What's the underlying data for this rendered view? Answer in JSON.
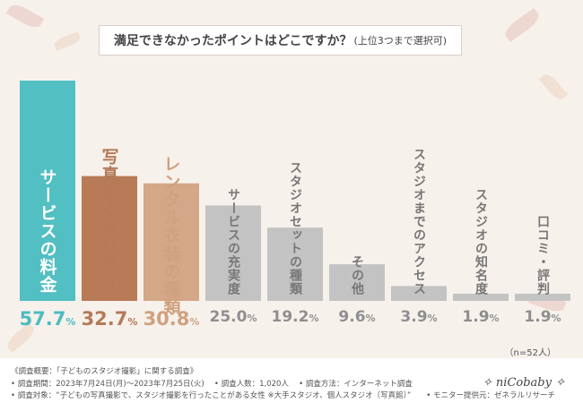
{
  "title": {
    "main": "満足できなかったポイントはどこですか？",
    "sub": "(上位3つまで選択可)"
  },
  "colors": {
    "teal": "#52bfc2",
    "brown": "#b97a57",
    "tan": "#d4a788",
    "gray": "#c3c3c3",
    "tealText": "#4cbcc0",
    "brownText": "#b47a58",
    "tanText": "#cfa17f",
    "grayText": "#8f8f8f"
  },
  "chart_data": {
    "type": "bar",
    "title": "満足できなかったポイントはどこですか？(上位3つまで選択可)",
    "categories": [
      "サービスの料金",
      "写真のクオリティ",
      "レンタル衣装の種類",
      "サービスの充実度",
      "スタジオセットの種類",
      "その他",
      "スタジオまでのアクセス",
      "スタジオの知名度",
      "口コミ・評判"
    ],
    "values": [
      57.7,
      32.7,
      30.8,
      25.0,
      19.2,
      9.6,
      3.9,
      1.9,
      1.9
    ],
    "value_labels": [
      "57.7",
      "32.7",
      "30.8",
      "25.0",
      "19.2",
      "9.6",
      "3.9",
      "1.9",
      "1.9"
    ],
    "unit": "%",
    "ylim": [
      0,
      57.7
    ],
    "color_keys": [
      "teal",
      "brown",
      "tan",
      "gray",
      "gray",
      "gray",
      "gray",
      "gray",
      "gray"
    ],
    "label_color_keys": [
      "white",
      "brown",
      "tan",
      "gray",
      "gray",
      "gray",
      "gray",
      "gray",
      "gray"
    ]
  },
  "note": "（n=52人）",
  "footer": {
    "line1": "《調査概要：「子どものスタジオ撮影」に関する調査》",
    "line2": "• 調査期間：2023年7月24日(月)～2023年7月25日(火)　 • 調査人数：1,020人　 • 調査方法：インターネット調査",
    "line3": "• 調査対象：“子どもの写真撮影で、スタジオ撮影を行ったことがある女性 ※大手スタジオ、個人スタジオ〔写真館〕”　　• モニター提供元：ゼネラルリサーチ"
  },
  "brand": "niCobaby"
}
